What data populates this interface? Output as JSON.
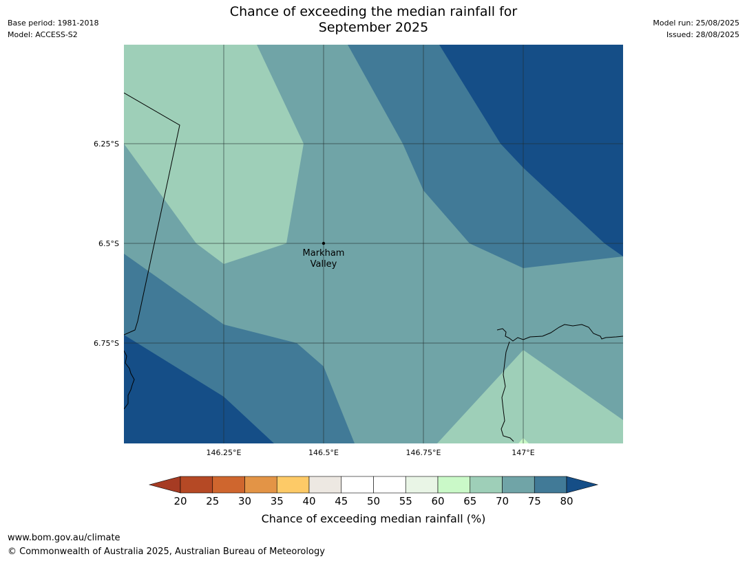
{
  "header": {
    "title_line1": "Chance of exceeding the median rainfall for",
    "title_line2": "September 2025",
    "left": {
      "base_period": "Base period: 1981-2018",
      "model": "Model: ACCESS-S2"
    },
    "right": {
      "model_run": "Model run: 25/08/2025",
      "issued": "Issued: 28/08/2025"
    }
  },
  "map": {
    "lat_labels": [
      "6.25°S",
      "6.5°S",
      "6.75°S"
    ],
    "lon_labels": [
      "146.25°E",
      "146.5°E",
      "146.75°E",
      "147°E"
    ],
    "place": {
      "name_line1": "Markham",
      "name_line2": "Valley"
    },
    "colors": {
      "c65_70": "#9ecfb8",
      "c70_75": "#70a4a7",
      "c75_80": "#417a97",
      "c80plus": "#154e87",
      "c60_65": "#caf9c8",
      "grid": "#1f2b2b",
      "coast": "#000000"
    }
  },
  "colorbar": {
    "label": "Chance of exceeding median rainfall (%)",
    "ticks": [
      "20",
      "25",
      "30",
      "35",
      "40",
      "45",
      "50",
      "55",
      "60",
      "65",
      "70",
      "75",
      "80"
    ],
    "colors": [
      "#a63b23",
      "#b54925",
      "#cf662e",
      "#e39446",
      "#fdca67",
      "#ede8e2",
      "#ffffff",
      "#ffffff",
      "#e9f5e6",
      "#caf9c8",
      "#9ecfb8",
      "#70a4a7",
      "#417a97",
      "#154e87"
    ]
  },
  "footer": {
    "url": "www.bom.gov.au/climate",
    "copyright": "© Commonwealth of Australia 2025, Australian Bureau of Meteorology"
  }
}
